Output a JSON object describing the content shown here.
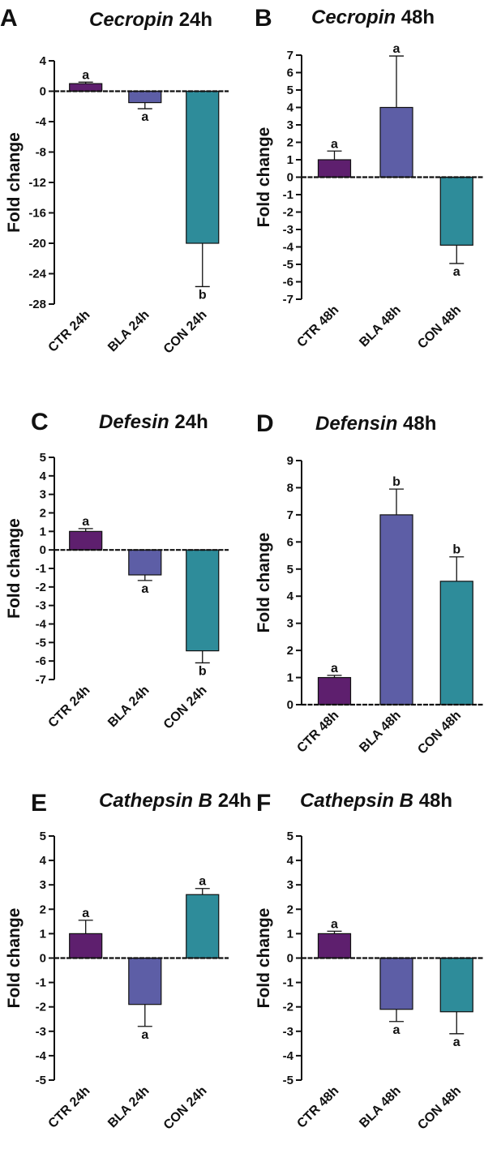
{
  "colors": {
    "CTR": "#5e1f6e",
    "BLA": "#5d5ea6",
    "CON": "#2e8c9a",
    "axis": "#111111"
  },
  "chart_data": [
    {
      "type": "bar",
      "panel": "A",
      "title_gene": "Cecropin",
      "title_time": "24h",
      "ylabel": "Fold change",
      "ylim": [
        -28,
        4
      ],
      "yticks": [
        4,
        0,
        -4,
        -8,
        -12,
        -16,
        -20,
        -24,
        -28
      ],
      "ytick_labels": [
        "4",
        "0",
        "-4",
        "-8",
        "-12",
        "-16",
        "-20",
        "-24",
        "-28"
      ],
      "categories": [
        "CTR 24h",
        "BLA 24h",
        "CON 24h"
      ],
      "values": [
        1.0,
        -1.5,
        -20.0
      ],
      "errors": [
        0.2,
        0.8,
        5.7
      ],
      "letters": [
        "a",
        "a",
        "b"
      ]
    },
    {
      "type": "bar",
      "panel": "B",
      "title_gene": "Cecropin",
      "title_time": "48h",
      "ylabel": "Fold change",
      "ylim": [
        -7,
        7
      ],
      "yticks": [
        7,
        6,
        5,
        4,
        3,
        2,
        1,
        0,
        -1,
        -2,
        -3,
        -4,
        -5,
        -6,
        -7
      ],
      "ytick_labels": [
        "7",
        "6",
        "5",
        "4",
        "3",
        "2",
        "1",
        "0",
        "-1",
        "-2",
        "-3",
        "-4",
        "-5",
        "-6",
        "-7"
      ],
      "categories": [
        "CTR 48h",
        "BLA 48h",
        "CON 48h"
      ],
      "values": [
        1.0,
        4.0,
        -3.9
      ],
      "errors": [
        0.5,
        2.95,
        1.05
      ],
      "letters": [
        "a",
        "a",
        "a"
      ]
    },
    {
      "type": "bar",
      "panel": "C",
      "title_gene": "Defesin",
      "title_time": "24h",
      "ylabel": "Fold change",
      "ylim": [
        -7,
        5
      ],
      "yticks": [
        5,
        4,
        3,
        2,
        1,
        0,
        -1,
        -2,
        -3,
        -4,
        -5,
        -6,
        -7
      ],
      "ytick_labels": [
        "5",
        "4",
        "3",
        "2",
        "1",
        "0",
        "-1",
        "-2",
        "-3",
        "-4",
        "-5",
        "-6",
        "-7"
      ],
      "categories": [
        "CTR 24h",
        "BLA 24h",
        "CON 24h"
      ],
      "values": [
        1.0,
        -1.35,
        -5.45
      ],
      "errors": [
        0.15,
        0.3,
        0.65
      ],
      "letters": [
        "a",
        "a",
        "b"
      ]
    },
    {
      "type": "bar",
      "panel": "D",
      "title_gene": "Defensin",
      "title_time": "48h",
      "ylabel": "Fold change",
      "ylim": [
        0,
        9
      ],
      "yticks": [
        9,
        8,
        7,
        6,
        5,
        4,
        3,
        2,
        1,
        0
      ],
      "ytick_labels": [
        "9",
        "8",
        "7",
        "6",
        "5",
        "4",
        "3",
        "2",
        "1",
        "0"
      ],
      "categories": [
        "CTR 48h",
        "BLA 48h",
        "CON 48h"
      ],
      "values": [
        1.0,
        7.0,
        4.55
      ],
      "errors": [
        0.08,
        0.95,
        0.9
      ],
      "letters": [
        "a",
        "b",
        "b"
      ]
    },
    {
      "type": "bar",
      "panel": "E",
      "title_gene": "Cathepsin B",
      "title_time": "24h",
      "ylabel": "Fold change",
      "ylim": [
        -5,
        5
      ],
      "yticks": [
        5,
        4,
        3,
        2,
        1,
        0,
        -1,
        -2,
        -3,
        -4,
        -5
      ],
      "ytick_labels": [
        "5",
        "4",
        "3",
        "2",
        "1",
        "0",
        "-1",
        "-2",
        "-3",
        "-4",
        "-5"
      ],
      "categories": [
        "CTR 24h",
        "BLA 24h",
        "CON 24h"
      ],
      "values": [
        1.0,
        -1.9,
        2.6
      ],
      "errors": [
        0.55,
        0.9,
        0.25
      ],
      "letters": [
        "a",
        "a",
        "a"
      ]
    },
    {
      "type": "bar",
      "panel": "F",
      "title_gene": "Cathepsin B",
      "title_time": "48h",
      "ylabel": "Fold change",
      "ylim": [
        -5,
        5
      ],
      "yticks": [
        5,
        4,
        3,
        2,
        1,
        0,
        -1,
        -2,
        -3,
        -4,
        -5
      ],
      "ytick_labels": [
        "5",
        "4",
        "3",
        "2",
        "1",
        "0",
        "-1",
        "-2",
        "-3",
        "-4",
        "-5"
      ],
      "categories": [
        "CTR 48h",
        "BLA 48h",
        "CON 48h"
      ],
      "values": [
        1.0,
        -2.1,
        -2.2
      ],
      "errors": [
        0.1,
        0.5,
        0.9
      ],
      "letters": [
        "a",
        "a",
        "a"
      ]
    }
  ]
}
